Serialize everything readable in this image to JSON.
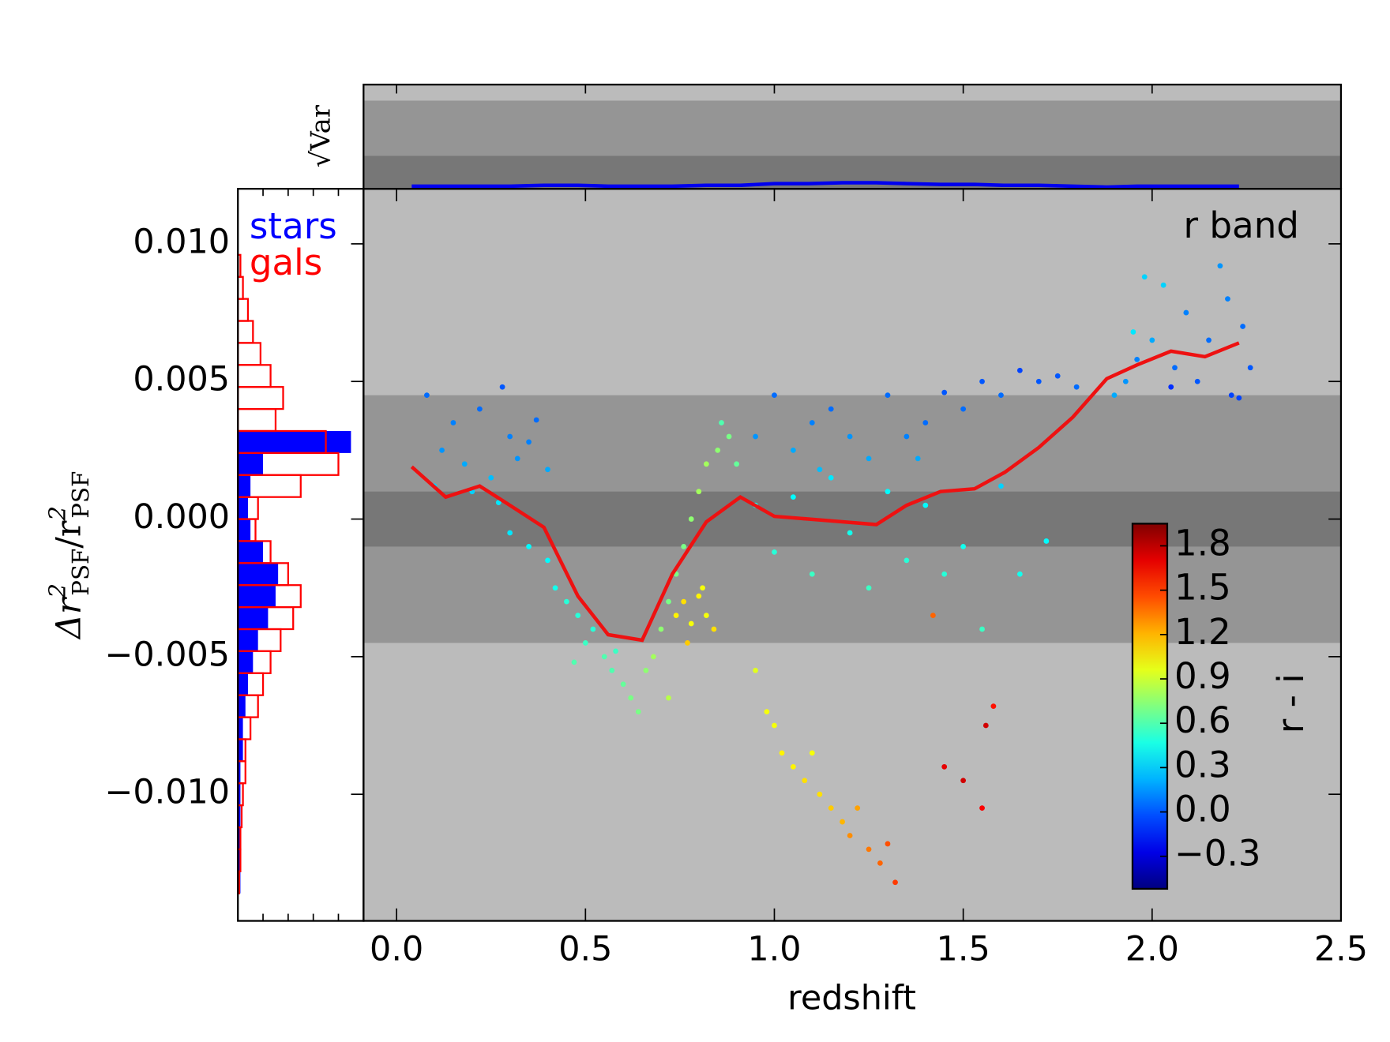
{
  "chart_data": {
    "type": "scatter",
    "xlabel": "redshift",
    "ylabel_parts": [
      "Δr",
      "2",
      "PSF",
      "/r",
      "2",
      "PSF"
    ],
    "top_ylabel": "√Var",
    "annotation": "r band",
    "xlim": [
      -0.0875,
      2.5
    ],
    "ylim": [
      -0.0146,
      0.012
    ],
    "xticks": [
      {
        "value": 0,
        "label": "0.0"
      },
      0.5,
      {
        "value": 1,
        "label": "1.0"
      },
      1.5,
      {
        "value": 2,
        "label": "2.0"
      },
      2.5
    ],
    "yticks": [
      {
        "value": -0.01,
        "label": "−0.010"
      },
      {
        "value": -0.005,
        "label": "−0.005"
      },
      {
        "value": 0,
        "label": "0.000"
      },
      0.005,
      {
        "value": 0.01,
        "label": "0.010"
      }
    ],
    "facecolor": "#bbbbbb",
    "bands": [
      {
        "lim": [
          -0.0045,
          0.0045
        ],
        "color": "#959595"
      },
      {
        "lim": [
          -0.001,
          0.001
        ],
        "color": "#777777"
      }
    ],
    "scatter": {
      "x": [
        0.08,
        0.12,
        0.15,
        0.18,
        0.22,
        0.25,
        0.28,
        0.3,
        0.32,
        0.35,
        0.37,
        0.2,
        0.1,
        0.27,
        0.4,
        0.3,
        0.35,
        0.4,
        0.42,
        0.45,
        0.48,
        0.5,
        0.52,
        0.55,
        0.57,
        0.6,
        0.62,
        0.64,
        0.58,
        0.47,
        0.66,
        0.68,
        0.7,
        0.72,
        0.74,
        0.76,
        0.78,
        0.8,
        0.82,
        0.85,
        0.88,
        0.9,
        0.72,
        0.86,
        0.74,
        0.76,
        0.78,
        0.8,
        0.82,
        0.84,
        0.77,
        0.81,
        0.95,
        1.0,
        1.05,
        1.1,
        1.15,
        1.2,
        1.25,
        1.3,
        1.35,
        1.4,
        1.45,
        1.5,
        1.55,
        1.6,
        1.65,
        1.7,
        1.75,
        1.8,
        1.12,
        1.38,
        0.95,
        1.0,
        1.05,
        1.1,
        1.15,
        1.2,
        1.25,
        1.3,
        1.35,
        1.4,
        1.45,
        1.5,
        1.55,
        1.6,
        1.65,
        1.72,
        0.95,
        0.98,
        1.0,
        1.02,
        1.05,
        1.08,
        1.1,
        1.12,
        1.15,
        1.18,
        1.2,
        1.22,
        1.25,
        1.28,
        1.3,
        1.32,
        1.9,
        1.93,
        1.96,
        2.0,
        2.03,
        2.06,
        2.09,
        2.12,
        2.15,
        2.18,
        2.21,
        2.24,
        2.26,
        1.95,
        2.05,
        2.2,
        2.23,
        1.98,
        1.42,
        1.45,
        1.5,
        1.55,
        1.58,
        1.56
      ],
      "y": [
        0.0045,
        0.0025,
        0.0035,
        0.002,
        0.004,
        0.0015,
        0.0048,
        0.003,
        0.0022,
        0.0028,
        0.0036,
        0.001,
        0.0012,
        0.0006,
        0.0018,
        -0.0005,
        -0.001,
        -0.0015,
        -0.0025,
        -0.003,
        -0.0035,
        -0.0045,
        -0.004,
        -0.005,
        -0.0055,
        -0.006,
        -0.0065,
        -0.007,
        -0.0048,
        -0.0052,
        -0.0055,
        -0.005,
        -0.004,
        -0.003,
        -0.002,
        -0.001,
        0,
        0.001,
        0.002,
        0.0025,
        0.003,
        0.002,
        -0.0065,
        0.0035,
        -0.0035,
        -0.003,
        -0.0038,
        -0.0028,
        -0.0035,
        -0.004,
        -0.0045,
        -0.0025,
        0.003,
        0.0045,
        0.0025,
        0.0035,
        0.004,
        0.003,
        0.0022,
        0.0045,
        0.003,
        0.0035,
        0.0046,
        0.004,
        0.005,
        0.0045,
        0.0054,
        0.005,
        0.0052,
        0.0048,
        0.0018,
        0.0022,
        0.0005,
        -0.0012,
        0.0008,
        -0.002,
        0.0015,
        -0.0005,
        -0.0025,
        0.001,
        -0.0015,
        0.0005,
        -0.002,
        -0.001,
        -0.004,
        0.0012,
        -0.002,
        -0.0008,
        -0.0055,
        -0.007,
        -0.0075,
        -0.0085,
        -0.009,
        -0.0095,
        -0.0085,
        -0.01,
        -0.0105,
        -0.011,
        -0.0115,
        -0.0105,
        -0.012,
        -0.0125,
        -0.0118,
        -0.0132,
        0.0045,
        0.005,
        0.0058,
        0.0065,
        0.0085,
        0.0055,
        0.0075,
        0.005,
        0.0065,
        0.0092,
        0.0045,
        0.007,
        0.0055,
        0.0068,
        0.0048,
        0.008,
        0.0044,
        0.0088,
        -0.0035,
        -0.009,
        -0.0095,
        -0.0105,
        -0.0068,
        -0.0075
      ],
      "c": [
        0.05,
        0.15,
        0.1,
        0.2,
        0.05,
        0.25,
        0.0,
        0.1,
        0.15,
        0.1,
        0.05,
        0.3,
        0.3,
        0.35,
        0.2,
        0.35,
        0.4,
        0.4,
        0.45,
        0.5,
        0.5,
        0.55,
        0.5,
        0.6,
        0.6,
        0.65,
        0.7,
        0.7,
        0.55,
        0.6,
        0.75,
        0.8,
        0.75,
        0.7,
        0.7,
        0.7,
        0.75,
        0.8,
        0.8,
        0.75,
        0.7,
        0.65,
        0.85,
        0.6,
        1.05,
        1.1,
        1.0,
        1.05,
        1.0,
        1.1,
        1.15,
        1.0,
        0.15,
        0.05,
        0.2,
        0.1,
        0.05,
        0.15,
        0.2,
        0.05,
        0.1,
        0.05,
        0.0,
        0.05,
        0.0,
        0.05,
        -0.05,
        0.0,
        0.0,
        0.05,
        0.25,
        0.2,
        0.45,
        0.5,
        0.4,
        0.55,
        0.35,
        0.45,
        0.55,
        0.4,
        0.5,
        0.4,
        0.5,
        0.45,
        0.55,
        0.3,
        0.45,
        0.4,
        0.95,
        1.0,
        1.0,
        1.05,
        1.05,
        1.1,
        1.0,
        1.1,
        1.15,
        1.2,
        1.3,
        1.25,
        1.35,
        1.4,
        1.45,
        1.5,
        0.2,
        0.15,
        0.1,
        0.2,
        0.3,
        0.05,
        0.1,
        0.0,
        0.05,
        0.15,
        -0.05,
        0.05,
        0.0,
        0.35,
        -0.1,
        0.1,
        -0.05,
        0.3,
        1.4,
        1.7,
        1.75,
        1.65,
        1.6,
        1.75
      ]
    },
    "median": {
      "color": "#ee1111",
      "x": [
        0.04,
        0.13,
        0.22,
        0.3,
        0.39,
        0.48,
        0.56,
        0.65,
        0.73,
        0.82,
        0.91,
        1.0,
        1.09,
        1.18,
        1.27,
        1.35,
        1.44,
        1.53,
        1.61,
        1.7,
        1.79,
        1.88,
        1.96,
        2.05,
        2.14,
        2.23
      ],
      "values": [
        0.0019,
        0.0008,
        0.0012,
        0.0005,
        -0.0003,
        -0.0028,
        -0.0042,
        -0.0044,
        -0.002,
        -0.0001,
        0.0008,
        0.0001,
        0,
        -0.0001,
        -0.0002,
        0.0005,
        0.001,
        0.0011,
        0.0017,
        0.0026,
        0.0037,
        0.0051,
        0.0056,
        0.0061,
        0.0059,
        0.0064
      ]
    },
    "top_panel": {
      "ylim": [
        0,
        0.012
      ],
      "color": "#0000ee",
      "values": [
        0.0003,
        0.0003,
        0.0003,
        0.0003,
        0.0004,
        0.0004,
        0.0003,
        0.0003,
        0.0003,
        0.0004,
        0.0004,
        0.0006,
        0.0006,
        0.0007,
        0.0007,
        0.0006,
        0.0005,
        0.0005,
        0.0004,
        0.0004,
        0.0003,
        0.0002,
        0.0003,
        0.0003,
        0.0003,
        0.0003
      ]
    },
    "histogram": {
      "xlim": [
        0,
        50
      ],
      "xticks": [
        10,
        20,
        30,
        40
      ],
      "bins": [
        -0.0136,
        -0.0128,
        -0.012,
        -0.0112,
        -0.0104,
        -0.0096,
        -0.0088,
        -0.008,
        -0.0072,
        -0.0064,
        -0.0056,
        -0.0048,
        -0.004,
        -0.0032,
        -0.0024,
        -0.0016,
        -0.0008,
        0,
        0.0008,
        0.0016,
        0.0024,
        0.0032,
        0.004,
        0.0048,
        0.0056,
        0.0064,
        0.0072,
        0.008,
        0.0088,
        0.0096
      ],
      "series": [
        {
          "name": "stars",
          "color": "#0000ff",
          "values": [
            1,
            1,
            1,
            1,
            1,
            1,
            2,
            2,
            3,
            4,
            6,
            8,
            12,
            15,
            16,
            10,
            5,
            4,
            5,
            10,
            45,
            0,
            0,
            0,
            0,
            0,
            0,
            0,
            0
          ]
        },
        {
          "name": "gals",
          "color": "#ff0000",
          "values": [
            0.5,
            1,
            1,
            1.5,
            2,
            3,
            3,
            5,
            8,
            10,
            13,
            17,
            22,
            25,
            20,
            13,
            7,
            8,
            25,
            40,
            35,
            15,
            18,
            13,
            9,
            6,
            4,
            2,
            1
          ]
        }
      ]
    },
    "colorbar": {
      "label": "r - i",
      "clim": [
        -0.52,
        1.95
      ],
      "ticks": [
        {
          "value": -0.3,
          "label": "−0.3"
        },
        {
          "value": 0,
          "label": "0.0"
        },
        0.3,
        0.6,
        0.9,
        1.2,
        1.5,
        1.8
      ]
    }
  }
}
